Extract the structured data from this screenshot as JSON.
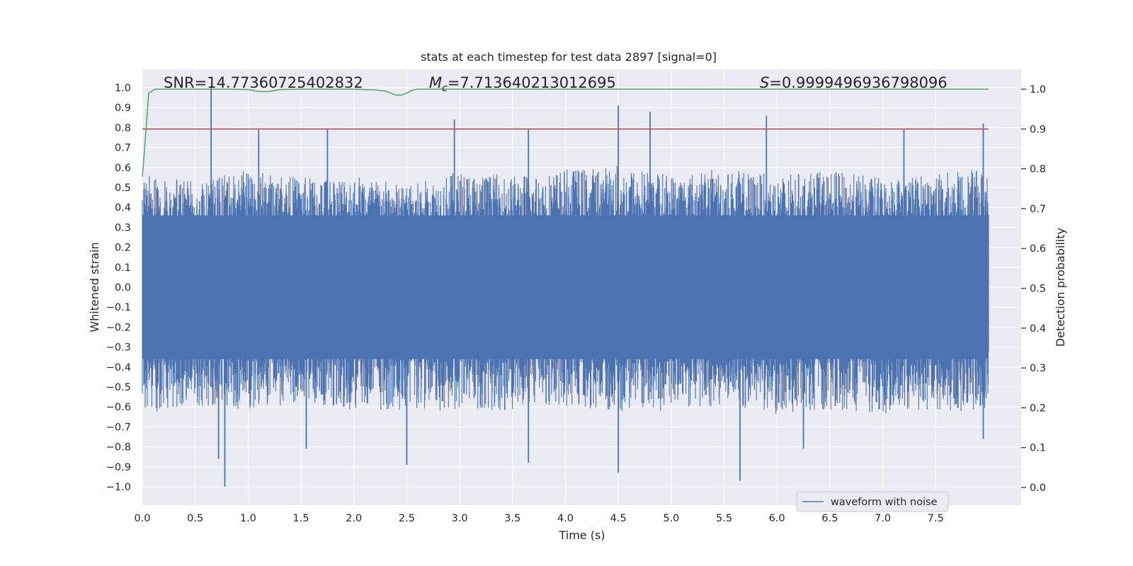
{
  "chart_data": {
    "type": "line",
    "title": "stats at each timestep for test data 2897 [signal=0]",
    "xlabel": "Time (s)",
    "ylabel": "Whitened strain",
    "y2label": "Detection probability",
    "xlim": [
      0.0,
      8.0
    ],
    "ylim": [
      -1.1,
      1.1
    ],
    "y2lim": [
      -0.05,
      1.05
    ],
    "xticks": [
      "0.0",
      "0.5",
      "1.0",
      "1.5",
      "2.0",
      "2.5",
      "3.0",
      "3.5",
      "4.0",
      "4.5",
      "5.0",
      "5.5",
      "6.0",
      "6.5",
      "7.0",
      "7.5"
    ],
    "yticks": [
      "1.0",
      "0.9",
      "0.8",
      "0.7",
      "0.6",
      "0.5",
      "0.4",
      "0.3",
      "0.2",
      "0.1",
      "0.0",
      "−0.1",
      "−0.2",
      "−0.3",
      "−0.4",
      "−0.5",
      "−0.6",
      "−0.7",
      "−0.8",
      "−0.9",
      "−1.0"
    ],
    "y2ticks": [
      "1.0",
      "0.9",
      "0.8",
      "0.7",
      "0.6",
      "0.5",
      "0.4",
      "0.3",
      "0.2",
      "0.1",
      "0.0"
    ],
    "grid": true,
    "legend_position": "lower-right",
    "annotations": {
      "snr_text": "SNR=14.77360725402832",
      "mc_prefix": "M",
      "mc_sub": "c",
      "mc_value": "=7.713640213012695",
      "s_prefix": "S",
      "s_value": "=0.9999496936798096"
    },
    "series": [
      {
        "name": "waveform with noise",
        "axis": "left",
        "color": "#4c72b0",
        "envelope_upper": [
          [
            0.0,
            0.55
          ],
          [
            0.5,
            0.52
          ],
          [
            1.0,
            0.58
          ],
          [
            1.5,
            0.54
          ],
          [
            2.0,
            0.56
          ],
          [
            2.5,
            0.5
          ],
          [
            3.0,
            0.57
          ],
          [
            3.5,
            0.55
          ],
          [
            4.0,
            0.58
          ],
          [
            4.5,
            0.6
          ],
          [
            5.0,
            0.56
          ],
          [
            5.5,
            0.58
          ],
          [
            6.0,
            0.55
          ],
          [
            6.5,
            0.57
          ],
          [
            7.0,
            0.54
          ],
          [
            7.5,
            0.56
          ],
          [
            8.0,
            0.58
          ]
        ],
        "envelope_lower": [
          [
            0.0,
            -0.62
          ],
          [
            0.5,
            -0.58
          ],
          [
            1.0,
            -0.6
          ],
          [
            1.5,
            -0.57
          ],
          [
            2.0,
            -0.6
          ],
          [
            2.5,
            -0.6
          ],
          [
            3.0,
            -0.61
          ],
          [
            3.5,
            -0.6
          ],
          [
            4.0,
            -0.58
          ],
          [
            4.5,
            -0.62
          ],
          [
            5.0,
            -0.6
          ],
          [
            5.5,
            -0.58
          ],
          [
            6.0,
            -0.62
          ],
          [
            6.5,
            -0.6
          ],
          [
            7.0,
            -0.62
          ],
          [
            7.5,
            -0.6
          ],
          [
            8.0,
            -0.62
          ]
        ],
        "peaks": [
          [
            0.65,
            1.0
          ],
          [
            1.1,
            0.79
          ],
          [
            1.75,
            0.79
          ],
          [
            2.95,
            0.84
          ],
          [
            3.65,
            0.79
          ],
          [
            4.5,
            0.91
          ],
          [
            4.8,
            0.88
          ],
          [
            5.9,
            0.86
          ],
          [
            7.2,
            0.79
          ],
          [
            7.95,
            0.82
          ],
          [
            0.78,
            -1.0
          ],
          [
            0.72,
            -0.86
          ],
          [
            2.5,
            -0.89
          ],
          [
            3.65,
            -0.88
          ],
          [
            4.5,
            -0.93
          ],
          [
            5.65,
            -0.97
          ],
          [
            6.25,
            -0.81
          ],
          [
            1.55,
            -0.81
          ],
          [
            7.95,
            -0.76
          ]
        ]
      },
      {
        "name": "",
        "axis": "right",
        "color": "#55a868",
        "x": [
          0.0,
          0.03,
          0.06,
          0.12,
          0.2,
          0.4,
          0.8,
          1.0,
          1.1,
          1.2,
          1.3,
          1.5,
          2.0,
          2.2,
          2.3,
          2.35,
          2.4,
          2.45,
          2.5,
          2.55,
          2.6,
          3.0,
          4.0,
          5.0,
          6.0,
          7.0,
          7.5,
          8.0
        ],
        "y": [
          0.78,
          0.88,
          0.99,
          1.0,
          1.0,
          1.0,
          1.0,
          0.999,
          0.994,
          0.994,
          0.999,
          1.0,
          1.0,
          0.998,
          0.995,
          0.99,
          0.985,
          0.985,
          0.99,
          0.997,
          1.0,
          1.0,
          1.0,
          1.0,
          1.0,
          1.0,
          1.0,
          1.0
        ]
      },
      {
        "name": "",
        "axis": "right",
        "color": "#c44e52",
        "x": [
          0.0,
          8.0
        ],
        "y": [
          0.9,
          0.9
        ]
      }
    ]
  }
}
